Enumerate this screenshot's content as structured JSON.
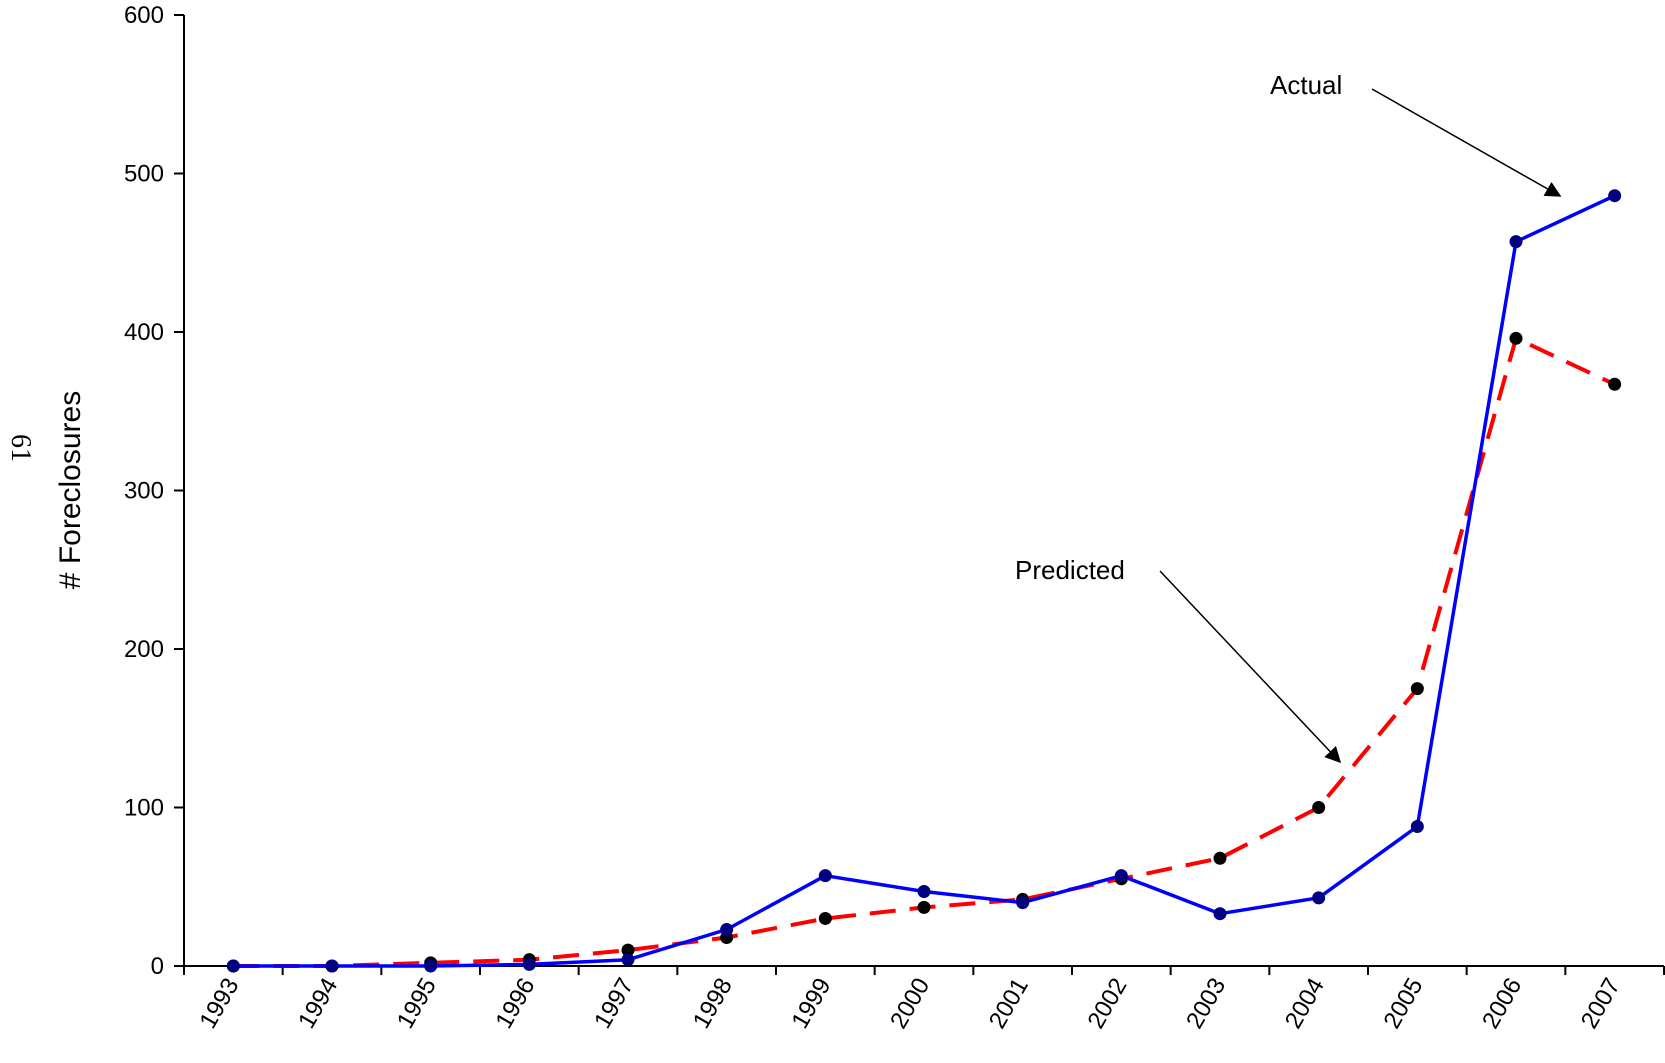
{
  "page_number": "61",
  "chart_data": {
    "type": "line",
    "title": "",
    "xlabel": "",
    "ylabel": "# Foreclosures",
    "ylim": [
      0,
      600
    ],
    "yticks": [
      0,
      100,
      200,
      300,
      400,
      500,
      600
    ],
    "categories": [
      "1993",
      "1994",
      "1995",
      "1996",
      "1997",
      "1998",
      "1999",
      "2000",
      "2001",
      "2002",
      "2003",
      "2004",
      "2005",
      "2006",
      "2007"
    ],
    "series": [
      {
        "name": "Actual",
        "color": "#0000ff",
        "marker_color": "#000080",
        "line_style": "solid",
        "values": [
          0,
          0,
          0,
          1,
          4,
          23,
          57,
          47,
          40,
          57,
          33,
          43,
          88,
          457,
          486
        ]
      },
      {
        "name": "Predicted",
        "color": "#ff0000",
        "marker_color": "#000000",
        "line_style": "dashed",
        "values": [
          0,
          0,
          2,
          4,
          10,
          18,
          30,
          37,
          42,
          55,
          68,
          100,
          175,
          396,
          367
        ]
      }
    ],
    "annotations": [
      {
        "text": "Actual",
        "series": "Actual"
      },
      {
        "text": "Predicted",
        "series": "Predicted"
      }
    ],
    "grid": false,
    "legend": "none"
  }
}
